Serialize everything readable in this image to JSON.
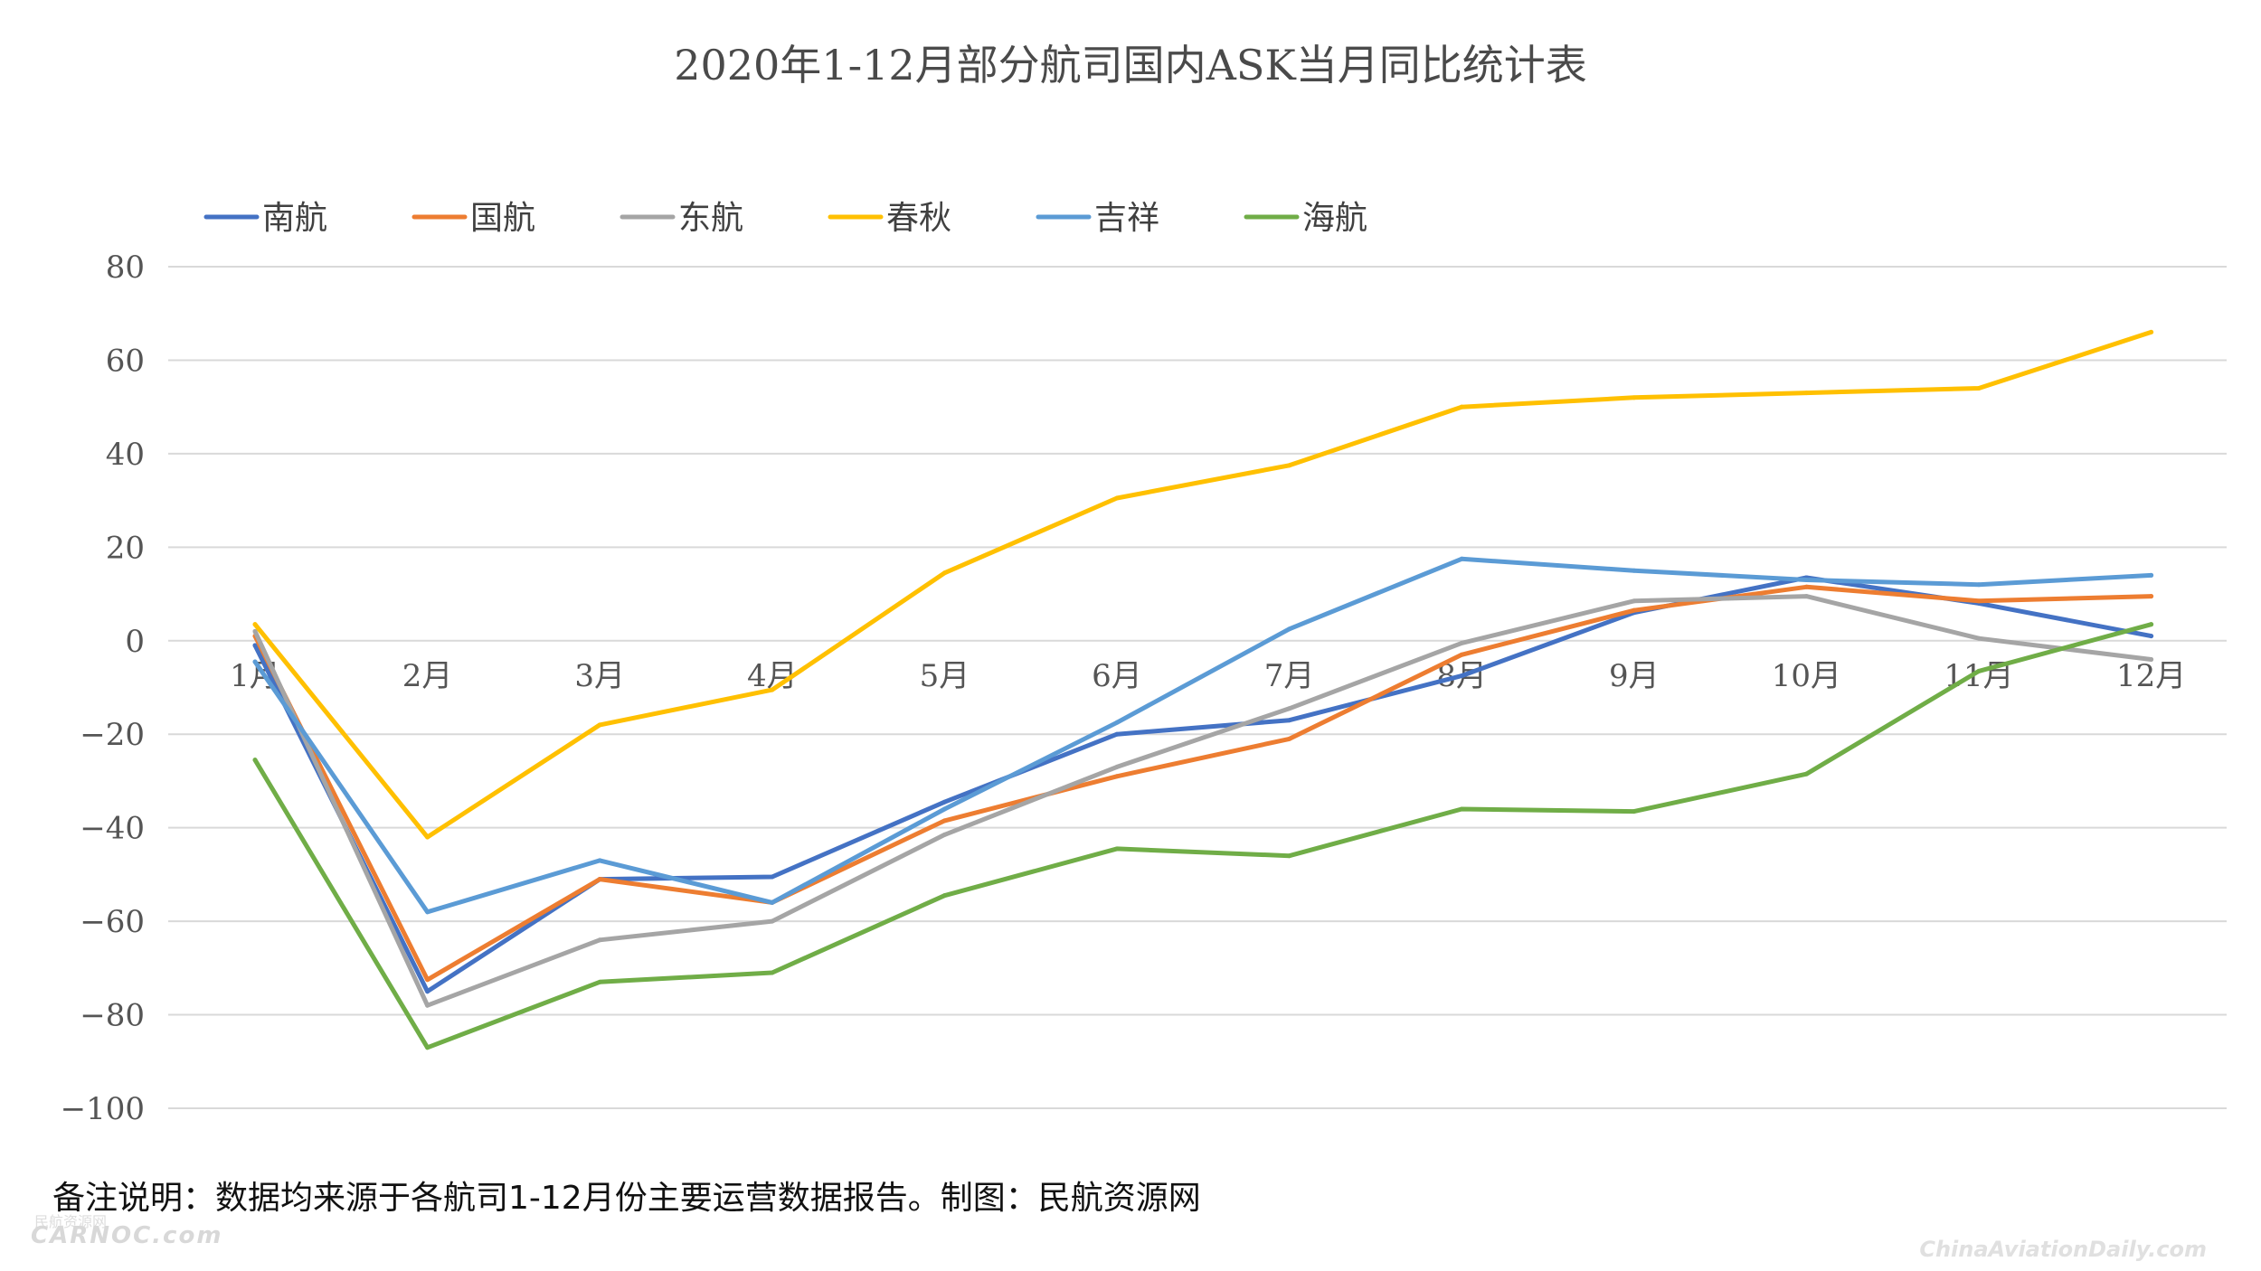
{
  "chart_data": {
    "type": "line",
    "title": "2020年1-12月部分航司国内ASK当月同比统计表",
    "categories": [
      "1月",
      "2月",
      "3月",
      "4月",
      "5月",
      "6月",
      "7月",
      "8月",
      "9月",
      "10月",
      "11月",
      "12月"
    ],
    "ylim": [
      -100,
      80
    ],
    "yticks": [
      80,
      60,
      40,
      20,
      0,
      -20,
      -40,
      -60,
      -80,
      -100
    ],
    "ytick_labels": [
      "80",
      "60",
      "40",
      "20",
      "0",
      "−20",
      "−40",
      "−60",
      "−80",
      "−100"
    ],
    "legend_position": "top-left",
    "series": [
      {
        "name": "南航",
        "color": "#4472c4",
        "values": [
          -1,
          -75,
          -51,
          -50.5,
          -34.5,
          -20,
          -17,
          -7.5,
          6,
          13.5,
          8,
          1
        ]
      },
      {
        "name": "国航",
        "color": "#ed7d31",
        "values": [
          1,
          -72.5,
          -51,
          -56,
          -38.5,
          -29,
          -21,
          -3,
          6.5,
          11.5,
          8.5,
          9.5
        ]
      },
      {
        "name": "东航",
        "color": "#a5a5a5",
        "values": [
          2,
          -78,
          -64,
          -60,
          -41.5,
          -27,
          -14.5,
          -0.5,
          8.5,
          9.5,
          0.5,
          -4
        ]
      },
      {
        "name": "春秋",
        "color": "#ffc000",
        "values": [
          3.5,
          -42,
          -18,
          -10.5,
          14.5,
          30.5,
          37.5,
          50,
          52,
          53,
          54,
          66
        ]
      },
      {
        "name": "吉祥",
        "color": "#5b9bd5",
        "values": [
          -4.5,
          -58,
          -47,
          -56,
          -36,
          -17.5,
          2.5,
          17.5,
          15,
          13,
          12,
          14
        ]
      },
      {
        "name": "海航",
        "color": "#70ad47",
        "values": [
          -25.5,
          -87,
          -73,
          -71,
          -54.5,
          -44.5,
          -46,
          -36,
          -36.5,
          -28.5,
          -6.5,
          3.5
        ]
      }
    ]
  },
  "footnote": "备注说明：数据均来源于各航司1-12月份主要运营数据报告。制图：民航资源网",
  "watermarks": {
    "left_small": "民航资源网",
    "left": "CARNOC.com",
    "right": "ChinaAviationDaily.com"
  }
}
